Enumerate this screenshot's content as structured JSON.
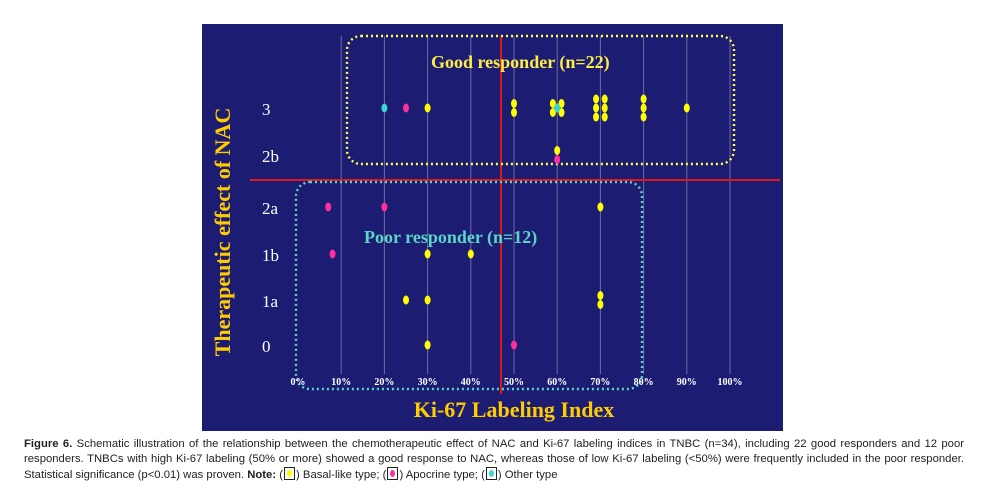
{
  "chart_data": {
    "type": "scatter",
    "xlabel": "Ki-67 Labeling Index",
    "ylabel": "Therapeutic effect of NAC",
    "x_ticks": [
      "0%",
      "10%",
      "20%",
      "30%",
      "40%",
      "50%",
      "60%",
      "70%",
      "80%",
      "90%",
      "100%"
    ],
    "y_ticks": [
      "3",
      "2b",
      "2a",
      "1b",
      "1a",
      "0"
    ],
    "xlim": [
      0,
      100
    ],
    "cutoffs": {
      "x": 47,
      "y_between": [
        "2b",
        "2a"
      ]
    },
    "groups": [
      {
        "label": "Good responder (n=22)",
        "color": "#ffff4d"
      },
      {
        "label": "Poor responder (n=12)",
        "color": "#5ad6c6"
      }
    ],
    "series": [
      {
        "name": "Basal-like type",
        "color": "#ffff00",
        "points": [
          {
            "x": 30,
            "y": "3"
          },
          {
            "x": 50,
            "y": "3"
          },
          {
            "x": 50,
            "y": "3"
          },
          {
            "x": 59,
            "y": "3"
          },
          {
            "x": 59,
            "y": "3"
          },
          {
            "x": 61,
            "y": "3"
          },
          {
            "x": 61,
            "y": "3"
          },
          {
            "x": 69,
            "y": "3"
          },
          {
            "x": 69,
            "y": "3"
          },
          {
            "x": 69,
            "y": "3"
          },
          {
            "x": 71,
            "y": "3"
          },
          {
            "x": 71,
            "y": "3"
          },
          {
            "x": 71,
            "y": "3"
          },
          {
            "x": 80,
            "y": "3"
          },
          {
            "x": 80,
            "y": "3"
          },
          {
            "x": 80,
            "y": "3"
          },
          {
            "x": 90,
            "y": "3"
          },
          {
            "x": 60,
            "y": "2b"
          },
          {
            "x": 70,
            "y": "2a"
          },
          {
            "x": 30,
            "y": "1b"
          },
          {
            "x": 40,
            "y": "1b"
          },
          {
            "x": 25,
            "y": "1a"
          },
          {
            "x": 30,
            "y": "1a"
          },
          {
            "x": 70,
            "y": "1a"
          },
          {
            "x": 70,
            "y": "1a"
          },
          {
            "x": 30,
            "y": "0"
          }
        ]
      },
      {
        "name": "Apocrine type",
        "color": "#ff2fa0",
        "points": [
          {
            "x": 25,
            "y": "3"
          },
          {
            "x": 60,
            "y": "2b"
          },
          {
            "x": 7,
            "y": "2a"
          },
          {
            "x": 20,
            "y": "2a"
          },
          {
            "x": 8,
            "y": "1b"
          },
          {
            "x": 50,
            "y": "0"
          }
        ]
      },
      {
        "name": "Other type",
        "color": "#38d6d6",
        "points": [
          {
            "x": 20,
            "y": "3"
          },
          {
            "x": 60,
            "y": "3"
          }
        ]
      }
    ]
  },
  "caption": {
    "figure_label": "Figure 6.",
    "text": "Schematic illustration of the relationship between the chemotherapeutic effect of NAC and Ki-67 labeling indices in TNBC (n=34), including 22 good responders and 12 poor responders. TNBCs with high Ki-67 labeling (50% or more) showed a good response to NAC, whereas those of low Ki-67 labeling (<50%) were frequently included in the poor responder.  Statistical significance (p<0.01) was proven.",
    "note_label": "Note:",
    "legend": [
      {
        "label": "Basal-like type;",
        "color": "#ffff00"
      },
      {
        "label": "Apocrine type;",
        "color": "#ff2fa0"
      },
      {
        "label": "Other type",
        "color": "#38d6d6"
      }
    ]
  }
}
